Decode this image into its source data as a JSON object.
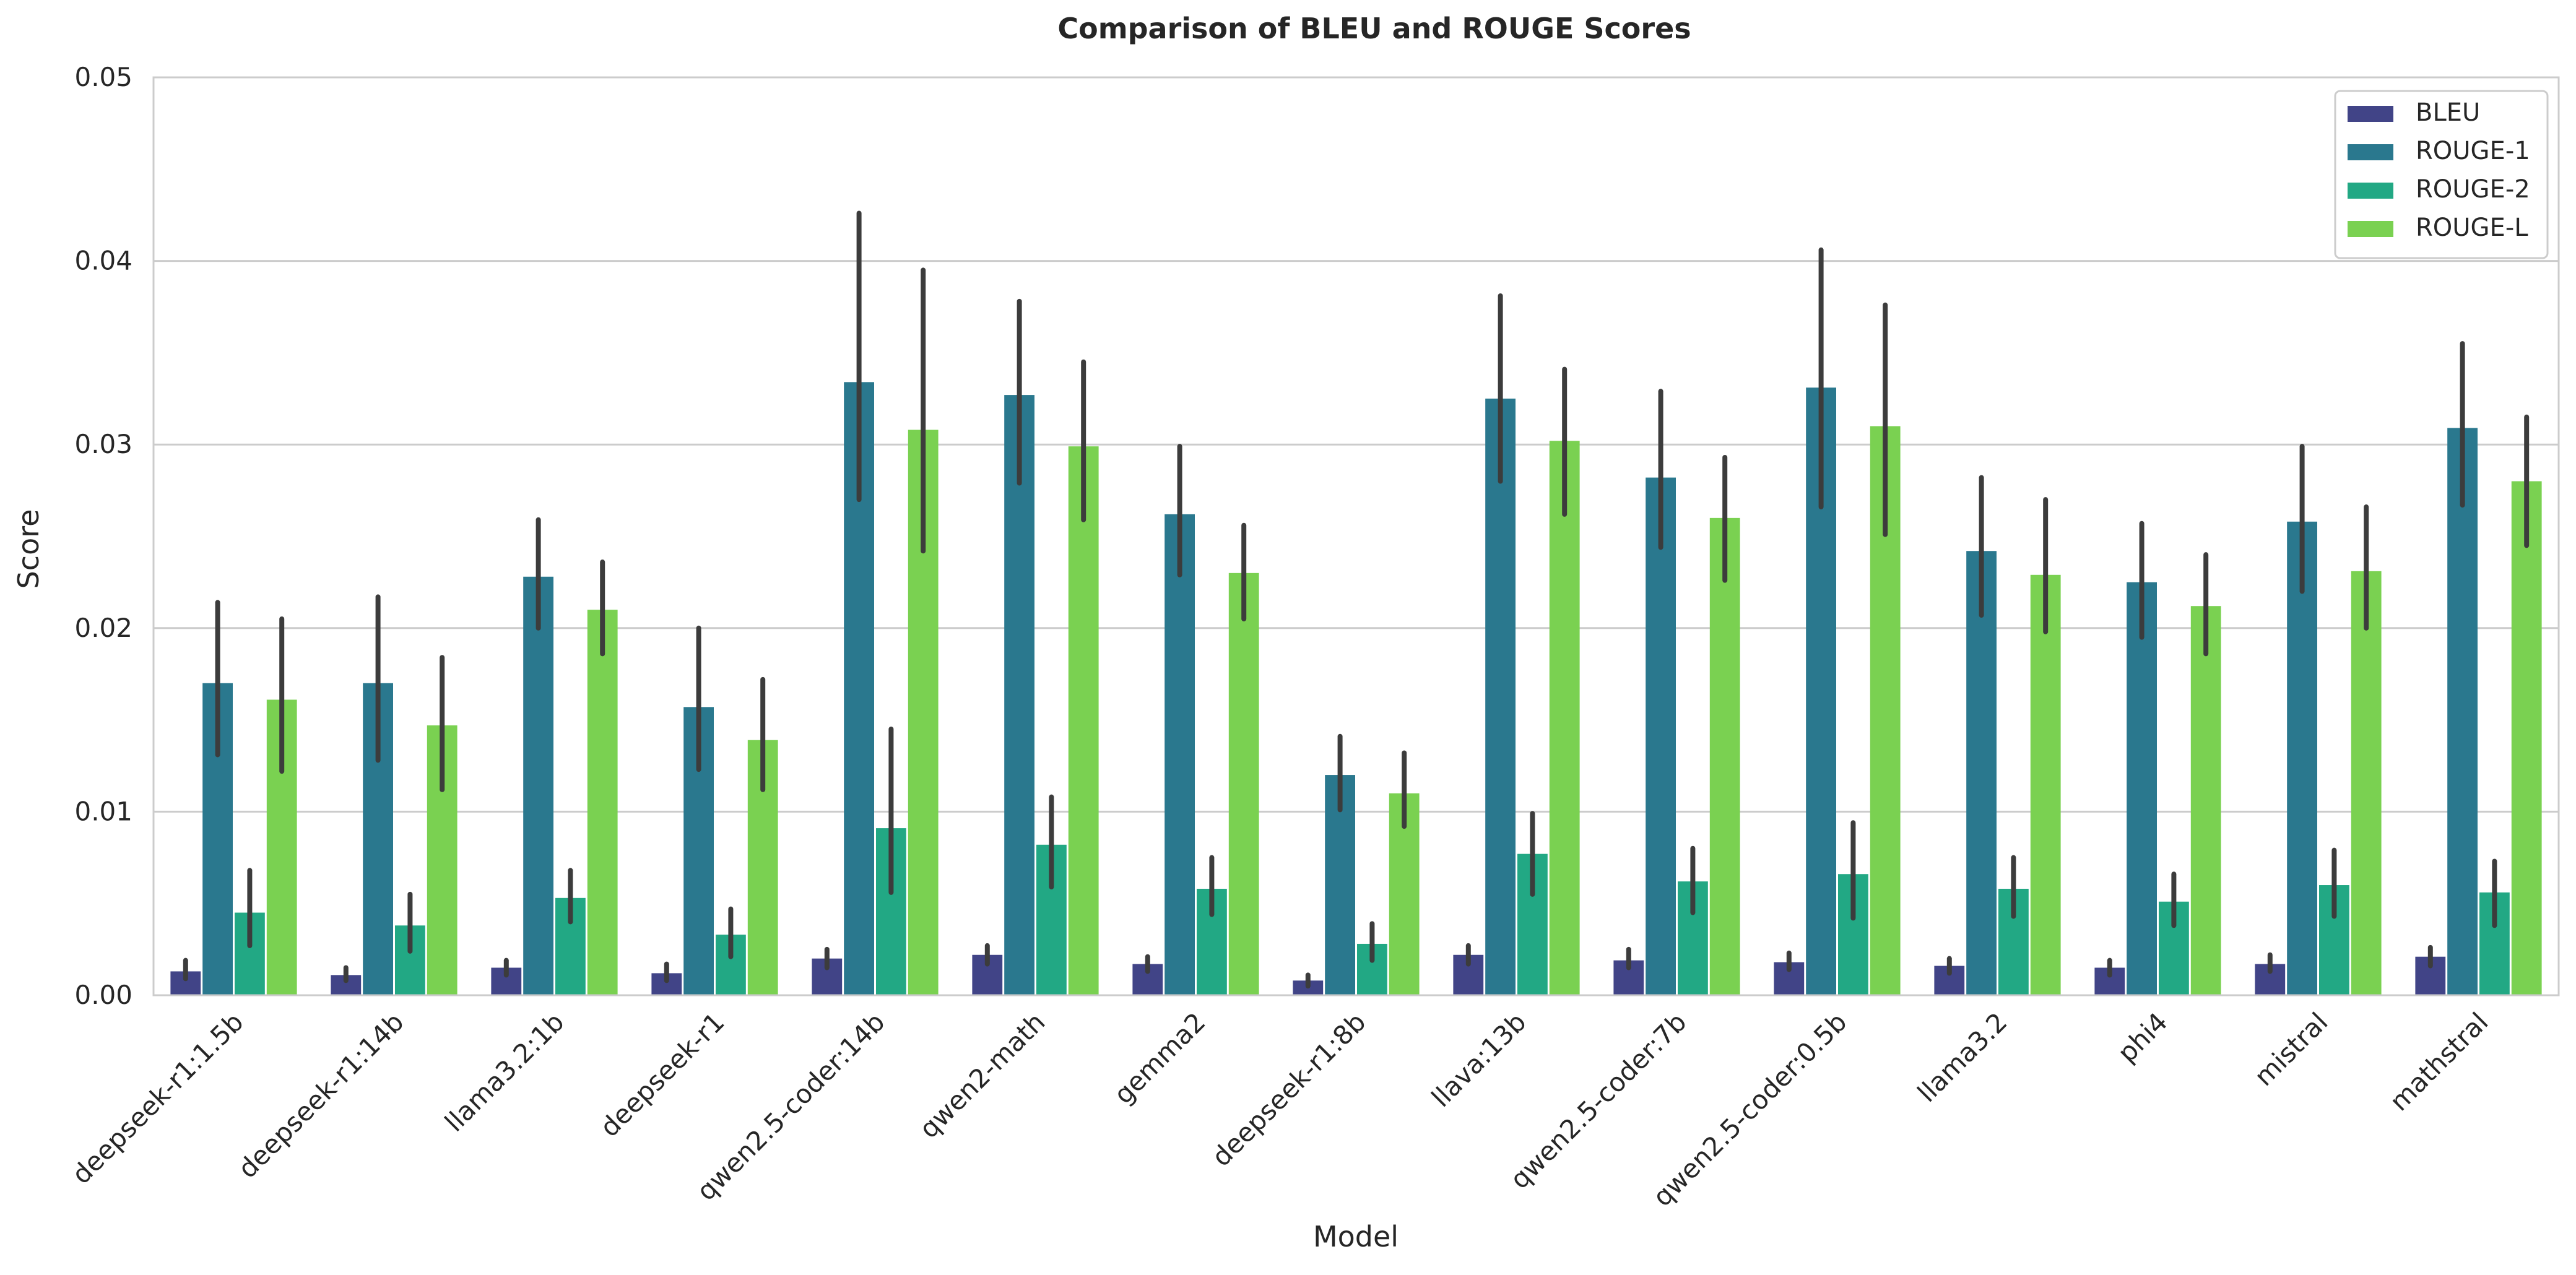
{
  "chart_data": {
    "type": "bar",
    "title": "Comparison of BLEU and ROUGE Scores",
    "xlabel": "Model",
    "ylabel": "Score",
    "ylim": [
      0,
      0.05
    ],
    "yticks": [
      "0.00",
      "0.01",
      "0.02",
      "0.03",
      "0.04",
      "0.05"
    ],
    "grid": "horizontal",
    "legend_position": "top-right",
    "error_bars": true,
    "categories": [
      "deepseek-r1:1.5b",
      "deepseek-r1:14b",
      "llama3.2:1b",
      "deepseek-r1",
      "qwen2.5-coder:14b",
      "qwen2-math",
      "gemma2",
      "deepseek-r1:8b",
      "llava:13b",
      "qwen2.5-coder:7b",
      "qwen2.5-coder:0.5b",
      "llama3.2",
      "phi4",
      "mistral",
      "mathstral"
    ],
    "series": [
      {
        "name": "BLEU",
        "color": "#414487",
        "values": [
          0.0013,
          0.0011,
          0.0015,
          0.0012,
          0.002,
          0.0022,
          0.0017,
          0.0008,
          0.0022,
          0.0019,
          0.0018,
          0.0016,
          0.0015,
          0.0017,
          0.0021
        ],
        "ci_low": [
          0.0009,
          0.0008,
          0.0011,
          0.0008,
          0.0015,
          0.0017,
          0.0013,
          0.0005,
          0.0017,
          0.0015,
          0.0014,
          0.0012,
          0.0011,
          0.0013,
          0.0016
        ],
        "ci_high": [
          0.0019,
          0.0015,
          0.0019,
          0.0017,
          0.0025,
          0.0027,
          0.0021,
          0.0011,
          0.0027,
          0.0025,
          0.0023,
          0.002,
          0.0019,
          0.0022,
          0.0026
        ]
      },
      {
        "name": "ROUGE-1",
        "color": "#2a788e",
        "values": [
          0.017,
          0.017,
          0.0228,
          0.0157,
          0.0334,
          0.0327,
          0.0262,
          0.012,
          0.0325,
          0.0282,
          0.0331,
          0.0242,
          0.0225,
          0.0258,
          0.0309
        ],
        "ci_low": [
          0.0131,
          0.0128,
          0.02,
          0.0123,
          0.027,
          0.0279,
          0.0229,
          0.0101,
          0.028,
          0.0244,
          0.0266,
          0.0207,
          0.0195,
          0.022,
          0.0267
        ],
        "ci_high": [
          0.0214,
          0.0217,
          0.0259,
          0.02,
          0.0426,
          0.0378,
          0.0299,
          0.0141,
          0.0381,
          0.0329,
          0.0406,
          0.0282,
          0.0257,
          0.0299,
          0.0355
        ]
      },
      {
        "name": "ROUGE-2",
        "color": "#22a884",
        "values": [
          0.0045,
          0.0038,
          0.0053,
          0.0033,
          0.0091,
          0.0082,
          0.0058,
          0.0028,
          0.0077,
          0.0062,
          0.0066,
          0.0058,
          0.0051,
          0.006,
          0.0056
        ],
        "ci_low": [
          0.0027,
          0.0024,
          0.004,
          0.0021,
          0.0056,
          0.0059,
          0.0044,
          0.0019,
          0.0055,
          0.0045,
          0.0042,
          0.0043,
          0.0038,
          0.0043,
          0.0038
        ],
        "ci_high": [
          0.0068,
          0.0055,
          0.0068,
          0.0047,
          0.0145,
          0.0108,
          0.0075,
          0.0039,
          0.0099,
          0.008,
          0.0094,
          0.0075,
          0.0066,
          0.0079,
          0.0073
        ]
      },
      {
        "name": "ROUGE-L",
        "color": "#7ad151",
        "values": [
          0.0161,
          0.0147,
          0.021,
          0.0139,
          0.0308,
          0.0299,
          0.023,
          0.011,
          0.0302,
          0.026,
          0.031,
          0.0229,
          0.0212,
          0.0231,
          0.028
        ],
        "ci_low": [
          0.0122,
          0.0112,
          0.0186,
          0.0112,
          0.0242,
          0.0259,
          0.0205,
          0.0092,
          0.0262,
          0.0226,
          0.0251,
          0.0198,
          0.0186,
          0.02,
          0.0245
        ],
        "ci_high": [
          0.0205,
          0.0184,
          0.0236,
          0.0172,
          0.0395,
          0.0345,
          0.0256,
          0.0132,
          0.0341,
          0.0293,
          0.0376,
          0.027,
          0.024,
          0.0266,
          0.0315
        ]
      }
    ]
  }
}
